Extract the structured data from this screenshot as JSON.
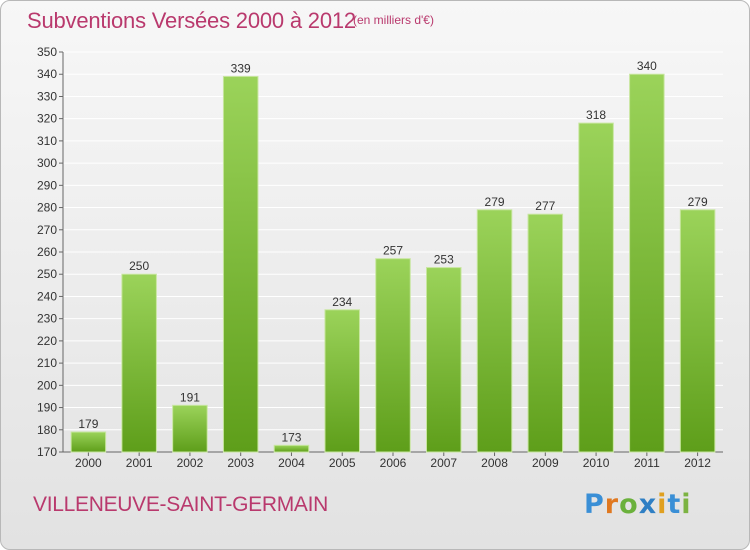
{
  "title": "Subventions Versées 2000 à 2012",
  "unit_note": "(en milliers d'€)",
  "commune": "VILLENEUVE-SAINT-GERMAIN",
  "logo_text": "Proxiti",
  "colors": {
    "text_accent": "#b9396d",
    "bar_top": "#9bd35a",
    "bar_bottom": "#5e9e1a",
    "grid": "#ffffff"
  },
  "chart_data": {
    "type": "bar",
    "title": "Subventions Versées 2000 à 2012",
    "xlabel": "",
    "ylabel": "",
    "categories": [
      "2000",
      "2001",
      "2002",
      "2003",
      "2004",
      "2005",
      "2006",
      "2007",
      "2008",
      "2009",
      "2010",
      "2011",
      "2012"
    ],
    "values": [
      179,
      250,
      191,
      339,
      173,
      234,
      257,
      253,
      279,
      277,
      318,
      340,
      279
    ],
    "ylim": [
      170,
      350
    ],
    "yticks": [
      170,
      180,
      190,
      200,
      210,
      220,
      230,
      240,
      250,
      260,
      270,
      280,
      290,
      300,
      310,
      320,
      330,
      340,
      350
    ],
    "grid": true,
    "legend": "none"
  }
}
